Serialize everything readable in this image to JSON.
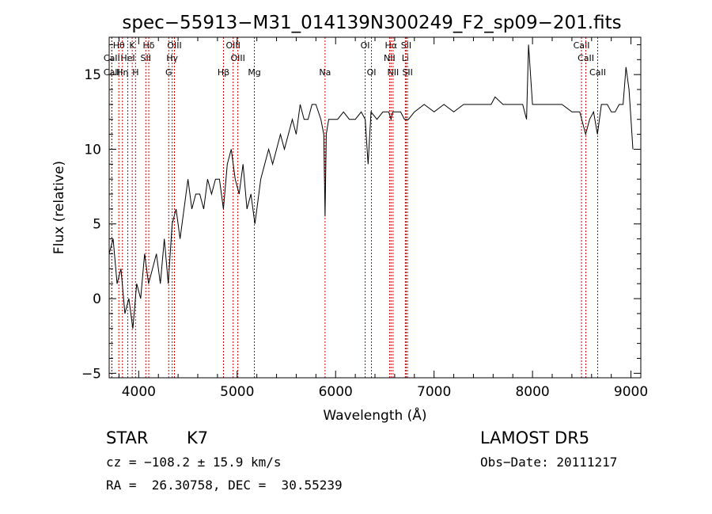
{
  "chart_data": {
    "type": "line",
    "title": "spec−55913−M31_014139N300249_F2_sp09−201.fits",
    "xlabel": "Wavelength (Å)",
    "ylabel": "Flux (relative)",
    "xlim": [
      3700,
      9100
    ],
    "ylim": [
      -5.3,
      17.5
    ],
    "xticks": [
      4000,
      5000,
      6000,
      7000,
      8000,
      9000
    ],
    "yticks": [
      -5,
      0,
      5,
      10,
      15
    ],
    "grid": false,
    "line_color": "#000000",
    "marker_color": "#cc0000",
    "series": [
      {
        "x": [
          3700,
          3740,
          3780,
          3820,
          3860,
          3900,
          3940,
          3980,
          4020,
          4060,
          4100,
          4140,
          4180,
          4220,
          4260,
          4300,
          4340,
          4380,
          4420,
          4460,
          4500,
          4540,
          4580,
          4620,
          4660,
          4700,
          4740,
          4780,
          4820,
          4860,
          4900,
          4940,
          4980,
          5020,
          5060,
          5100,
          5140,
          5180,
          5200,
          5240,
          5280,
          5320,
          5360,
          5400,
          5440,
          5480,
          5520,
          5560,
          5600,
          5640,
          5680,
          5720,
          5760,
          5800,
          5850,
          5880,
          5893,
          5905,
          5930,
          5980,
          6020,
          6080,
          6140,
          6200,
          6260,
          6300,
          6330,
          6360,
          6420,
          6480,
          6540,
          6563,
          6580,
          6620,
          6660,
          6700,
          6740,
          6800,
          6900,
          7000,
          7100,
          7200,
          7300,
          7400,
          7500,
          7580,
          7620,
          7700,
          7800,
          7900,
          7940,
          7960,
          8000,
          8100,
          8200,
          8300,
          8400,
          8480,
          8540,
          8580,
          8620,
          8660,
          8700,
          8760,
          8800,
          8840,
          8880,
          8920,
          8950,
          8980,
          9000,
          9020
        ],
        "y": [
          3,
          4,
          1,
          2,
          -1,
          0,
          -2,
          1,
          0,
          3,
          1,
          2,
          3,
          1,
          4,
          1,
          5,
          6,
          4,
          6,
          8,
          6,
          7,
          7,
          6,
          8,
          7,
          8,
          8,
          6,
          9,
          10,
          8,
          7,
          9,
          6,
          7,
          5,
          6,
          8,
          9,
          10,
          9,
          10,
          11,
          10,
          11,
          12,
          11,
          13,
          12,
          12,
          13,
          13,
          12,
          11,
          5.5,
          11,
          12,
          12,
          12,
          12.5,
          12,
          12,
          12.5,
          12,
          9,
          12.5,
          12,
          12.5,
          12.5,
          12,
          12.5,
          12.5,
          12.5,
          12,
          12,
          12.5,
          13,
          12.5,
          13,
          12.5,
          13,
          13,
          13,
          13,
          13.5,
          13,
          13,
          13,
          12,
          17,
          13,
          13,
          13,
          13,
          12.5,
          12.5,
          11,
          12,
          12.5,
          11,
          13,
          13,
          12.5,
          12.5,
          13,
          13,
          15.5,
          14,
          12,
          10
        ]
      }
    ],
    "spectral_lines": [
      {
        "label": "Hθ",
        "wavelength": 3798,
        "row": 1
      },
      {
        "label": "K",
        "wavelength": 3934,
        "row": 1
      },
      {
        "label": "Hδ",
        "wavelength": 4102,
        "row": 1
      },
      {
        "label": "OIII",
        "wavelength": 4363,
        "row": 1
      },
      {
        "label": "OIII",
        "wavelength": 4959,
        "row": 1
      },
      {
        "label": "OI",
        "wavelength": 6300,
        "row": 1
      },
      {
        "label": "Hα",
        "wavelength": 6563,
        "row": 1
      },
      {
        "label": "SII",
        "wavelength": 6717,
        "row": 1
      },
      {
        "label": "CaII",
        "wavelength": 8498,
        "row": 1
      },
      {
        "label": "CaII",
        "wavelength": 3727,
        "row": 2
      },
      {
        "label": "HeI",
        "wavelength": 3889,
        "row": 2
      },
      {
        "label": "SII",
        "wavelength": 4072,
        "row": 2
      },
      {
        "label": "Hγ",
        "wavelength": 4340,
        "row": 2
      },
      {
        "label": "OIII",
        "wavelength": 5007,
        "row": 2
      },
      {
        "label": "NII",
        "wavelength": 6548,
        "row": 2
      },
      {
        "label": "Li",
        "wavelength": 6708,
        "row": 2
      },
      {
        "label": "CaII",
        "wavelength": 8542,
        "row": 2
      },
      {
        "label": "CaII",
        "wavelength": 3727,
        "row": 3
      },
      {
        "label": "Hη",
        "wavelength": 3835,
        "row": 3
      },
      {
        "label": "H",
        "wavelength": 3968,
        "row": 3
      },
      {
        "label": "G",
        "wavelength": 4305,
        "row": 3
      },
      {
        "label": "Hβ",
        "wavelength": 4861,
        "row": 3
      },
      {
        "label": "Mg",
        "wavelength": 5175,
        "row": 3
      },
      {
        "label": "Na",
        "wavelength": 5893,
        "row": 3
      },
      {
        "label": "OI",
        "wavelength": 6364,
        "row": 3
      },
      {
        "label": "NII",
        "wavelength": 6584,
        "row": 3
      },
      {
        "label": "SII",
        "wavelength": 6731,
        "row": 3
      },
      {
        "label": "CaII",
        "wavelength": 8662,
        "row": 3
      }
    ]
  },
  "info": {
    "class": "STAR",
    "subclass": "K7",
    "survey": "LAMOST DR5",
    "cz": "cz = −108.2 ± 15.9 km/s",
    "obsdate": "Obs−Date: 20111217",
    "coords": "RA =  26.30758, DEC =  30.55239"
  }
}
